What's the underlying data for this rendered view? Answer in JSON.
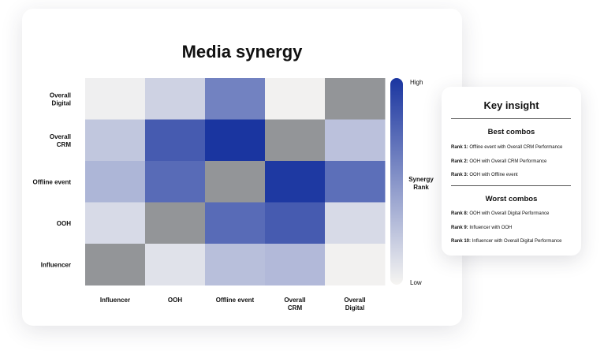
{
  "chart_data": {
    "type": "heatmap",
    "title": "Media synergy",
    "rows": [
      "Overall Digital",
      "Overall CRM",
      "Offline event",
      "OOH",
      "Influencer"
    ],
    "columns": [
      "Influencer",
      "OOH",
      "Offline event",
      "Overall CRM",
      "Overall Digital"
    ],
    "values": [
      [
        0.03,
        0.18,
        0.6,
        0.02,
        null
      ],
      [
        0.24,
        0.8,
        1.0,
        null,
        0.27
      ],
      [
        0.33,
        0.72,
        null,
        0.98,
        0.7
      ],
      [
        0.14,
        null,
        0.72,
        0.8,
        0.14
      ],
      [
        null,
        0.1,
        0.28,
        0.31,
        0.02
      ]
    ],
    "value_meaning": "relative synergy level from Low (0) to High (1); diagonal self-pairs are blank (grey)",
    "colorbar": {
      "title": "Synergy Rank",
      "high_label": "High",
      "low_label": "Low"
    },
    "colors": {
      "high": "#1a35a0",
      "low": "#f6f5f2",
      "diagonal": "#939598"
    },
    "grid": false
  },
  "insight": {
    "title": "Key insight",
    "best_heading": "Best combos",
    "best": [
      {
        "rank": "Rank 1:",
        "text": "Offline event with Overall CRM Performance"
      },
      {
        "rank": "Rank 2:",
        "text": "OOH with Overall CRM Performance"
      },
      {
        "rank": "Rank 3:",
        "text": "OOH with Offline event"
      }
    ],
    "worst_heading": "Worst combos",
    "worst": [
      {
        "rank": "Rank 8:",
        "text": "OOH with Overall Digital Performance"
      },
      {
        "rank": "Rank 9:",
        "text": "Influencer with OOH"
      },
      {
        "rank": "Rank 10:",
        "text": "Influencer with Overall Digital Performance"
      }
    ]
  }
}
